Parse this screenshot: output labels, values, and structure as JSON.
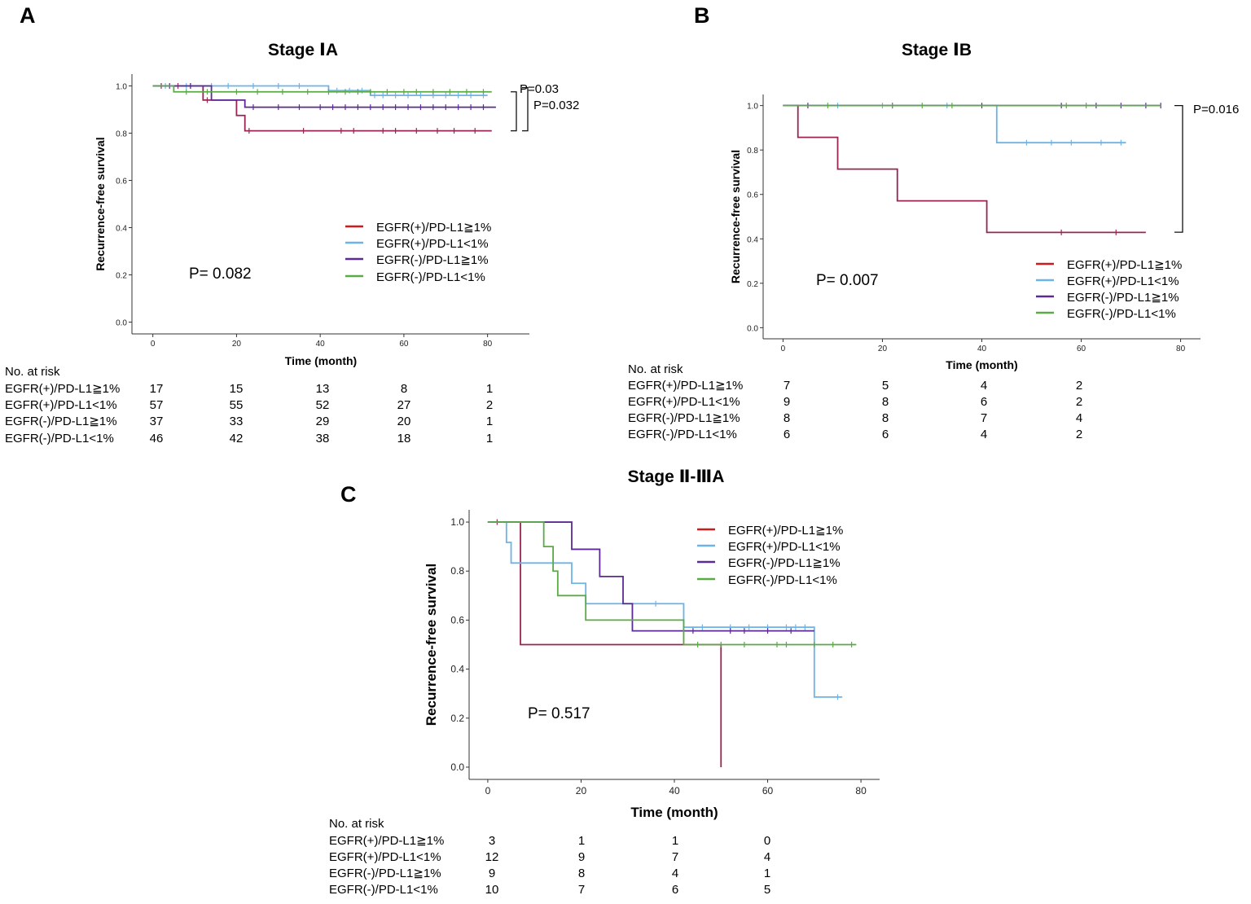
{
  "colors": {
    "EGFR(+)/PD-L1≧1%": "#9a2452",
    "EGFR(+)/PD-L1<1%": "#6cb4e8",
    "EGFR(-)/PD-L1≧1%": "#5b2a96",
    "EGFR(-)/PD-L1<1%": "#5aaa45"
  },
  "legend_colors": {
    "EGFR(+)/PD-L1≧1%": "#cc1c1c",
    "EGFR(+)/PD-L1<1%": "#6cb4e8",
    "EGFR(-)/PD-L1≧1%": "#5b2a96",
    "EGFR(-)/PD-L1<1%": "#5aaa45"
  },
  "chart_data": [
    {
      "panel": "A",
      "title": "Stage ⅠA",
      "type": "line",
      "xlabel": "Time (month)",
      "ylabel": "Recurrence-free survival",
      "xticks": [
        0,
        20,
        40,
        60,
        80
      ],
      "yticks": [
        "0.0",
        "0.2",
        "0.4",
        "0.6",
        "0.8",
        "1.0"
      ],
      "xlim": [
        -5,
        90
      ],
      "ylim": [
        -0.05,
        1.05
      ],
      "legend": [
        "EGFR(+)/PD-L1≧1%",
        "EGFR(+)/PD-L1<1%",
        "EGFR(-)/PD-L1≧1%",
        "EGFR(-)/PD-L1<1%"
      ],
      "p_value": "P= 0.082",
      "pairwise": [
        {
          "label": "P=0.03",
          "from_y": 0.975,
          "to_y": 0.81
        },
        {
          "label": "P=0.032",
          "from_y": 0.965,
          "to_y": 0.81
        }
      ],
      "series": [
        {
          "name": "EGFR(+)/PD-L1≧1%",
          "end_x": 81,
          "steps": [
            [
              0,
              1.0
            ],
            [
              12,
              0.94
            ],
            [
              20,
              0.875
            ],
            [
              22,
              0.81
            ]
          ],
          "censors": [
            2,
            6,
            9,
            13,
            23,
            36,
            45,
            48,
            55,
            58,
            63,
            68,
            72,
            77
          ]
        },
        {
          "name": "EGFR(+)/PD-L1<1%",
          "end_x": 80,
          "steps": [
            [
              0,
              1.0
            ],
            [
              42,
              0.98
            ],
            [
              52,
              0.96
            ]
          ],
          "censors": [
            3,
            8,
            14,
            18,
            24,
            30,
            35,
            44,
            47,
            50,
            53,
            55,
            58,
            61,
            64,
            67,
            70,
            73,
            76,
            79
          ]
        },
        {
          "name": "EGFR(-)/PD-L1≧1%",
          "end_x": 82,
          "steps": [
            [
              0,
              1.0
            ],
            [
              14,
              0.94
            ],
            [
              22,
              0.91
            ]
          ],
          "censors": [
            4,
            9,
            24,
            30,
            35,
            40,
            43,
            46,
            49,
            52,
            55,
            58,
            61,
            64,
            67,
            70,
            73,
            76,
            79
          ]
        },
        {
          "name": "EGFR(-)/PD-L1<1%",
          "end_x": 81,
          "steps": [
            [
              0,
              1.0
            ],
            [
              5,
              0.975
            ]
          ],
          "censors": [
            8,
            13,
            20,
            25,
            31,
            37,
            42,
            46,
            49,
            52,
            56,
            60,
            63,
            67,
            71,
            75,
            79
          ]
        }
      ],
      "risk_table": {
        "header": "No. at risk",
        "rows": [
          {
            "label": "EGFR(+)/PD-L1≧1%",
            "values": [
              "17",
              "15",
              "13",
              "8",
              "1"
            ]
          },
          {
            "label": "EGFR(+)/PD-L1<1%",
            "values": [
              "57",
              "55",
              "52",
              "27",
              "2"
            ]
          },
          {
            "label": "EGFR(-)/PD-L1≧1%",
            "values": [
              "37",
              "33",
              "29",
              "20",
              "1"
            ]
          },
          {
            "label": "EGFR(-)/PD-L1<1%",
            "values": [
              "46",
              "42",
              "38",
              "18",
              "1"
            ]
          }
        ]
      }
    },
    {
      "panel": "B",
      "title": "Stage ⅠB",
      "type": "line",
      "xlabel": "Time (month)",
      "ylabel": "Recurrence-free survival",
      "xticks": [
        0,
        20,
        40,
        60,
        80
      ],
      "yticks": [
        "0.0",
        "0.2",
        "0.4",
        "0.6",
        "0.8",
        "1.0"
      ],
      "xlim": [
        -4,
        84
      ],
      "ylim": [
        -0.05,
        1.05
      ],
      "legend": [
        "EGFR(+)/PD-L1≧1%",
        "EGFR(+)/PD-L1<1%",
        "EGFR(-)/PD-L1≧1%",
        "EGFR(-)/PD-L1<1%"
      ],
      "p_value": "P= 0.007",
      "pairwise": [
        {
          "label": "P=0.016",
          "from_y": 1.0,
          "to_y": 0.43
        }
      ],
      "series": [
        {
          "name": "EGFR(+)/PD-L1≧1%",
          "end_x": 73,
          "steps": [
            [
              0,
              1.0
            ],
            [
              3,
              0.857
            ],
            [
              11,
              0.714
            ],
            [
              23,
              0.571
            ],
            [
              41,
              0.429
            ]
          ],
          "censors": [
            56,
            67
          ]
        },
        {
          "name": "EGFR(+)/PD-L1<1%",
          "end_x": 69,
          "steps": [
            [
              0,
              1.0
            ],
            [
              43,
              0.833
            ]
          ],
          "censors": [
            11,
            20,
            33,
            49,
            54,
            58,
            64,
            68
          ]
        },
        {
          "name": "EGFR(-)/PD-L1≧1%",
          "end_x": 76,
          "steps": [
            [
              0,
              1.0
            ]
          ],
          "censors": [
            5,
            22,
            40,
            56,
            63,
            68,
            73,
            76
          ]
        },
        {
          "name": "EGFR(-)/PD-L1<1%",
          "end_x": 76,
          "steps": [
            [
              0,
              1.0
            ]
          ],
          "censors": [
            9,
            22,
            28,
            34,
            57,
            61
          ]
        }
      ],
      "risk_table": {
        "header": "No. at risk",
        "rows": [
          {
            "label": "EGFR(+)/PD-L1≧1%",
            "values": [
              "7",
              "5",
              "4",
              "2"
            ]
          },
          {
            "label": "EGFR(+)/PD-L1<1%",
            "values": [
              "9",
              "8",
              "6",
              "2"
            ]
          },
          {
            "label": "EGFR(-)/PD-L1≧1%",
            "values": [
              "8",
              "8",
              "7",
              "4"
            ]
          },
          {
            "label": "EGFR(-)/PD-L1<1%",
            "values": [
              "6",
              "6",
              "4",
              "2"
            ]
          }
        ]
      }
    },
    {
      "panel": "C",
      "title": "Stage Ⅱ-ⅢA",
      "type": "line",
      "xlabel": "Time (month)",
      "ylabel": "Recurrence-free survival",
      "xticks": [
        0,
        20,
        40,
        60,
        80
      ],
      "yticks": [
        "0.0",
        "0.2",
        "0.4",
        "0.6",
        "0.8",
        "1.0"
      ],
      "xlim": [
        -4,
        84
      ],
      "ylim": [
        -0.05,
        1.05
      ],
      "legend": [
        "EGFR(+)/PD-L1≧1%",
        "EGFR(+)/PD-L1<1%",
        "EGFR(-)/PD-L1≧1%",
        "EGFR(-)/PD-L1<1%"
      ],
      "p_value": "P= 0.517",
      "pairwise": [],
      "series": [
        {
          "name": "EGFR(+)/PD-L1≧1%",
          "end_x": 50,
          "steps": [
            [
              0,
              1.0
            ],
            [
              7,
              0.5
            ],
            [
              50,
              0.0
            ]
          ],
          "censors": [
            2
          ]
        },
        {
          "name": "EGFR(+)/PD-L1<1%",
          "end_x": 76,
          "steps": [
            [
              0,
              1.0
            ],
            [
              4,
              0.917
            ],
            [
              5,
              0.833
            ],
            [
              18,
              0.75
            ],
            [
              21,
              0.667
            ],
            [
              42,
              0.571
            ],
            [
              70,
              0.286
            ]
          ],
          "censors": [
            36,
            46,
            52,
            56,
            60,
            64,
            66,
            68,
            75
          ]
        },
        {
          "name": "EGFR(-)/PD-L1≧1%",
          "end_x": 70,
          "steps": [
            [
              0,
              1.0
            ],
            [
              18,
              0.889
            ],
            [
              24,
              0.778
            ],
            [
              29,
              0.667
            ],
            [
              31,
              0.556
            ]
          ],
          "censors": [
            44,
            52,
            55,
            60,
            65
          ]
        },
        {
          "name": "EGFR(-)/PD-L1<1%",
          "end_x": 79,
          "steps": [
            [
              0,
              1.0
            ],
            [
              12,
              0.9
            ],
            [
              14,
              0.8
            ],
            [
              15,
              0.7
            ],
            [
              21,
              0.6
            ],
            [
              42,
              0.5
            ]
          ],
          "censors": [
            45,
            50,
            55,
            62,
            64,
            70,
            74,
            78
          ]
        }
      ],
      "risk_table": {
        "header": "No. at risk",
        "rows": [
          {
            "label": "EGFR(+)/PD-L1≧1%",
            "values": [
              "3",
              "1",
              "1",
              "0"
            ]
          },
          {
            "label": "EGFR(+)/PD-L1<1%",
            "values": [
              "12",
              "9",
              "7",
              "4"
            ]
          },
          {
            "label": "EGFR(-)/PD-L1≧1%",
            "values": [
              "9",
              "8",
              "4",
              "1"
            ]
          },
          {
            "label": "EGFR(-)/PD-L1<1%",
            "values": [
              "10",
              "7",
              "6",
              "5"
            ]
          }
        ]
      }
    }
  ]
}
